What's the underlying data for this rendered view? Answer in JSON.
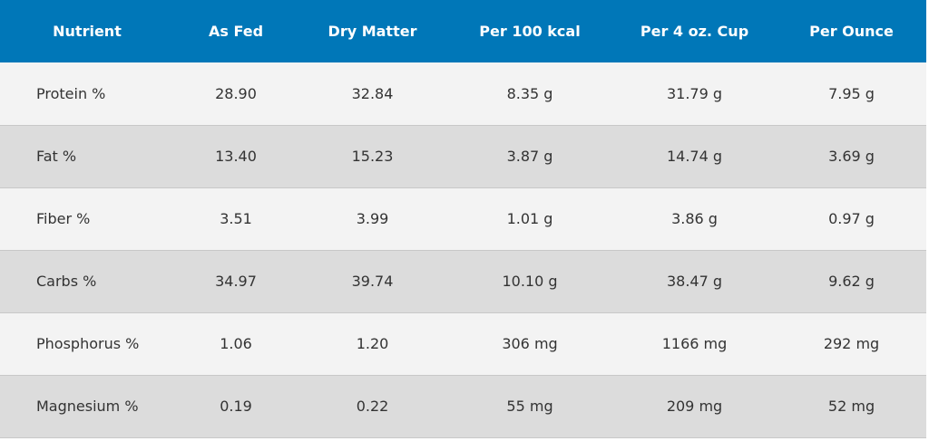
{
  "table": {
    "headers": [
      "Nutrient",
      "As Fed",
      "Dry Matter",
      "Per 100 kcal",
      "Per 4 oz. Cup",
      "Per Ounce"
    ],
    "rows": [
      [
        "Protein %",
        "28.90",
        "32.84",
        "8.35 g",
        "31.79 g",
        "7.95 g"
      ],
      [
        "Fat %",
        "13.40",
        "15.23",
        "3.87 g",
        "14.74 g",
        "3.69 g"
      ],
      [
        "Fiber %",
        "3.51",
        "3.99",
        "1.01 g",
        "3.86 g",
        "0.97 g"
      ],
      [
        "Carbs %",
        "34.97",
        "39.74",
        "10.10 g",
        "38.47 g",
        "9.62 g"
      ],
      [
        "Phosphorus %",
        "1.06",
        "1.20",
        "306 mg",
        "1166 mg",
        "292 mg"
      ],
      [
        "Magnesium %",
        "0.19",
        "0.22",
        "55 mg",
        "209 mg",
        "52 mg"
      ]
    ]
  },
  "colors": {
    "header_bg": "#0077b8",
    "header_text": "#ffffff",
    "row_light": "#f3f3f3",
    "row_dark": "#dcdcdc",
    "body_text": "#333333"
  }
}
